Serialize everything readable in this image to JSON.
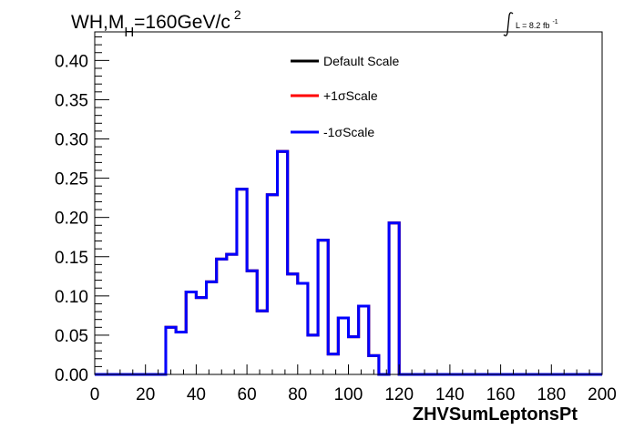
{
  "chart_data": {
    "type": "step",
    "title_main": "WH,M",
    "title_sub": "H",
    "title_rest": "=160GeV/c",
    "title_sup": "2",
    "lumi_label": "L = 8.2 fb",
    "lumi_sup": "-1",
    "xlabel": "ZHVSumLeptonsPt",
    "xlim": [
      0,
      200
    ],
    "ylim": [
      0,
      0.4364
    ],
    "x_ticks": [
      0,
      20,
      40,
      60,
      80,
      100,
      120,
      140,
      160,
      180,
      200
    ],
    "x_tick_labels": [
      "0",
      "20",
      "40",
      "60",
      "80",
      "100",
      "120",
      "140",
      "160",
      "180",
      "200"
    ],
    "y_ticks": [
      0,
      0.05,
      0.1,
      0.15,
      0.2,
      0.25,
      0.3,
      0.35,
      0.4
    ],
    "y_tick_labels": [
      "0.00",
      "0.05",
      "0.10",
      "0.15",
      "0.20",
      "0.25",
      "0.30",
      "0.35",
      "0.40"
    ],
    "bin_edges": [
      0,
      4,
      8,
      12,
      16,
      20,
      24,
      28,
      32,
      36,
      40,
      44,
      48,
      52,
      56,
      60,
      64,
      68,
      72,
      76,
      80,
      84,
      88,
      92,
      96,
      100,
      104,
      108,
      112,
      116,
      120,
      124,
      128,
      132,
      136,
      140,
      144,
      148,
      152,
      156,
      160,
      164,
      168,
      172,
      176,
      180,
      184,
      188,
      192,
      196,
      200
    ],
    "series": [
      {
        "name": "Default Scale",
        "color": "#000000",
        "values": [
          0,
          0,
          0,
          0,
          0,
          0,
          0,
          0.06,
          0.054,
          0.105,
          0.098,
          0.118,
          0.147,
          0.153,
          0.236,
          0.132,
          0.081,
          0.229,
          0.284,
          0.128,
          0.116,
          0.05,
          0.171,
          0.026,
          0.072,
          0.048,
          0.087,
          0.024,
          0,
          0.193,
          0,
          0,
          0,
          0,
          0,
          0,
          0,
          0,
          0,
          0,
          0,
          0,
          0,
          0,
          0,
          0,
          0,
          0,
          0,
          0
        ]
      },
      {
        "name": "+1σScale",
        "color": "#ff0000",
        "values": [
          0,
          0,
          0,
          0,
          0,
          0,
          0,
          0.06,
          0.054,
          0.105,
          0.098,
          0.118,
          0.147,
          0.153,
          0.236,
          0.132,
          0.081,
          0.229,
          0.284,
          0.128,
          0.116,
          0.05,
          0.171,
          0.026,
          0.072,
          0.048,
          0.087,
          0.024,
          0,
          0.193,
          0,
          0,
          0,
          0,
          0,
          0,
          0,
          0,
          0,
          0,
          0,
          0,
          0,
          0,
          0,
          0,
          0,
          0,
          0,
          0
        ]
      },
      {
        "name": "-1σScale",
        "color": "#0000ff",
        "values": [
          0,
          0,
          0,
          0,
          0,
          0,
          0,
          0.06,
          0.054,
          0.105,
          0.098,
          0.118,
          0.147,
          0.153,
          0.236,
          0.132,
          0.081,
          0.229,
          0.284,
          0.128,
          0.116,
          0.05,
          0.171,
          0.026,
          0.072,
          0.048,
          0.087,
          0.024,
          0,
          0.193,
          0,
          0,
          0,
          0,
          0,
          0,
          0,
          0,
          0,
          0,
          0,
          0,
          0,
          0,
          0,
          0,
          0,
          0,
          0,
          0
        ]
      }
    ],
    "legend_placement": "top-center",
    "grid": false
  }
}
